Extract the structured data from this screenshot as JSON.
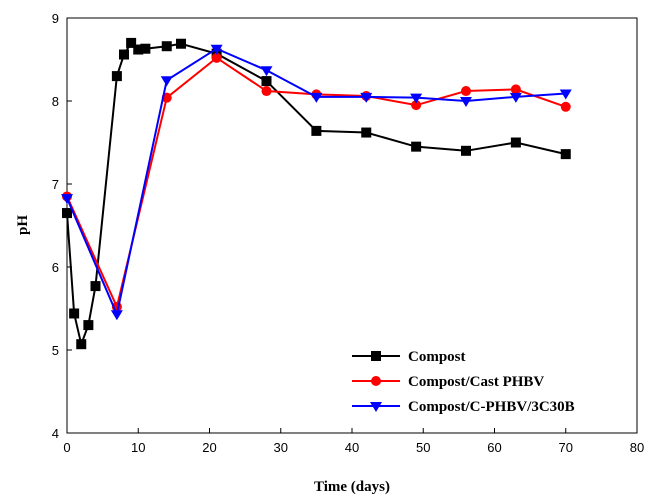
{
  "chart_data": {
    "type": "line",
    "xlabel": "Time (days)",
    "ylabel": "pH",
    "xlim": [
      0,
      80
    ],
    "ylim": [
      4,
      9
    ],
    "xticks": [
      0,
      10,
      20,
      30,
      40,
      50,
      60,
      70,
      80
    ],
    "yticks": [
      4,
      5,
      6,
      7,
      8,
      9
    ],
    "grid": false,
    "legend_position": "bottom-right",
    "series": [
      {
        "name": "Compost",
        "color": "#000000",
        "marker": "square",
        "x": [
          0,
          1,
          2,
          3,
          4,
          7,
          8,
          9,
          10,
          11,
          14,
          16,
          21,
          28,
          35,
          42,
          49,
          56,
          63,
          70
        ],
        "y": [
          6.65,
          5.44,
          5.07,
          5.3,
          5.77,
          8.3,
          8.56,
          8.7,
          8.62,
          8.63,
          8.66,
          8.69,
          8.57,
          8.24,
          7.64,
          7.62,
          7.45,
          7.4,
          7.5,
          7.36
        ]
      },
      {
        "name": "Compost/Cast PHBV",
        "color": "#ff0000",
        "marker": "circle",
        "x": [
          0,
          7,
          14,
          21,
          28,
          35,
          42,
          49,
          56,
          63,
          70
        ],
        "y": [
          6.85,
          5.52,
          8.04,
          8.52,
          8.12,
          8.08,
          8.06,
          7.95,
          8.12,
          8.14,
          7.93
        ]
      },
      {
        "name": "Compost/C-PHBV/3C30B",
        "color": "#0000ff",
        "marker": "triangle-down",
        "x": [
          0,
          7,
          14,
          21,
          28,
          35,
          42,
          49,
          56,
          63,
          70
        ],
        "y": [
          6.83,
          5.43,
          8.25,
          8.63,
          8.37,
          8.05,
          8.05,
          8.04,
          8.0,
          8.05,
          8.09
        ]
      }
    ]
  }
}
